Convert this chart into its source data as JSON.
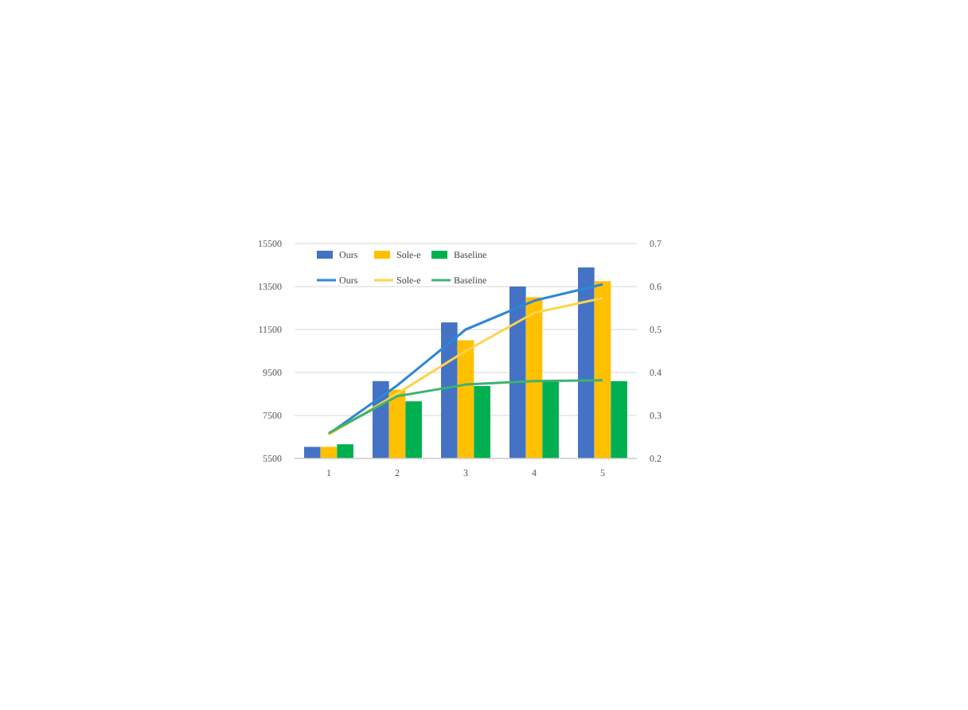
{
  "chart_data": {
    "type": "bar",
    "categories": [
      "1",
      "2",
      "3",
      "4",
      "5"
    ],
    "series": [
      {
        "name": "Ours",
        "color": "#4472c4",
        "values": [
          6040,
          9100,
          11830,
          13500,
          14390
        ]
      },
      {
        "name": "Sole-e",
        "color": "#ffc000",
        "values": [
          6040,
          8700,
          11000,
          13000,
          13750
        ]
      },
      {
        "name": "Baseline",
        "color": "#00b050",
        "values": [
          6160,
          8160,
          8870,
          9100,
          9100
        ]
      },
      {
        "name": "Ours",
        "type": "line",
        "axis": "y2",
        "color": "#2e86d6",
        "values": [
          0.257,
          0.37,
          0.5,
          0.567,
          0.605
        ]
      },
      {
        "name": "Sole-e",
        "type": "line",
        "axis": "y2",
        "color": "#ffd34d",
        "values": [
          0.255,
          0.351,
          0.45,
          0.539,
          0.573
        ]
      },
      {
        "name": "Baseline",
        "type": "line",
        "axis": "y2",
        "color": "#3cb371",
        "values": [
          0.259,
          0.345,
          0.372,
          0.38,
          0.382
        ]
      }
    ],
    "ylim": [
      5500,
      15500
    ],
    "yticks": [
      5500,
      7500,
      9500,
      11500,
      13500,
      15500
    ],
    "y2lim": [
      0.2,
      0.7
    ],
    "y2ticks": [
      0.2,
      0.3,
      0.4,
      0.5,
      0.6,
      0.7
    ],
    "grid": "y",
    "legend": "top left"
  }
}
